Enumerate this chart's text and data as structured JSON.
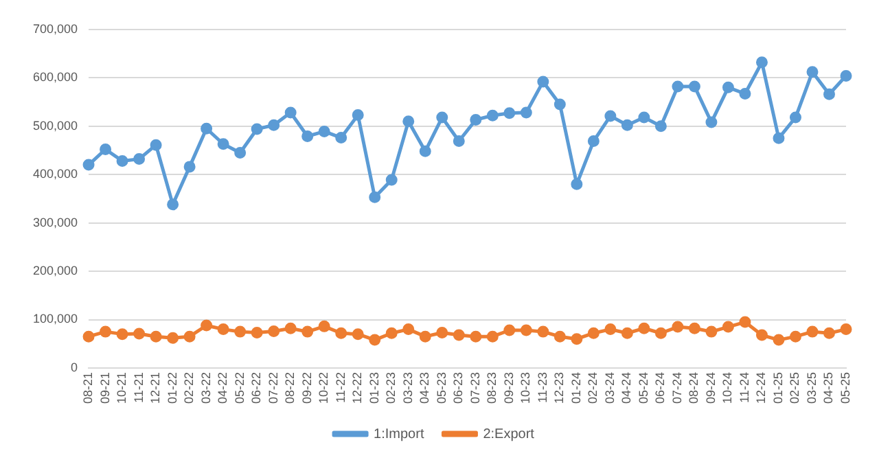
{
  "chart_data": {
    "type": "line",
    "categories": [
      "08-21",
      "09-21",
      "10-21",
      "11-21",
      "12-21",
      "01-22",
      "02-22",
      "03-22",
      "04-22",
      "05-22",
      "06-22",
      "07-22",
      "08-22",
      "09-22",
      "10-22",
      "11-22",
      "12-22",
      "01-23",
      "02-23",
      "03-23",
      "04-23",
      "05-23",
      "06-23",
      "07-23",
      "08-23",
      "09-23",
      "10-23",
      "11-23",
      "12-23",
      "01-24",
      "02-24",
      "03-24",
      "04-24",
      "05-24",
      "06-24",
      "07-24",
      "08-24",
      "09-24",
      "10-24",
      "11-24",
      "12-24",
      "01-25",
      "02-25",
      "03-25",
      "04-25",
      "05-25"
    ],
    "series": [
      {
        "name": "1:Import",
        "color": "#5b9bd5",
        "values": [
          420000,
          452000,
          428000,
          432000,
          461000,
          338000,
          416000,
          495000,
          463000,
          445000,
          494000,
          502000,
          528000,
          479000,
          489000,
          476000,
          523000,
          353000,
          389000,
          510000,
          448000,
          518000,
          469000,
          513000,
          522000,
          527000,
          528000,
          592000,
          545000,
          380000,
          469000,
          521000,
          502000,
          518000,
          500000,
          582000,
          582000,
          508000,
          580000,
          567000,
          632000,
          475000,
          518000,
          612000,
          566000,
          604000
        ]
      },
      {
        "name": "2:Export",
        "color": "#ed7d31",
        "values": [
          65000,
          75000,
          70000,
          71000,
          65000,
          62000,
          65000,
          88000,
          80000,
          75000,
          73000,
          76000,
          82000,
          75000,
          86000,
          72000,
          70000,
          58000,
          72000,
          80000,
          65000,
          73000,
          68000,
          65000,
          65000,
          78000,
          78000,
          75000,
          65000,
          60000,
          72000,
          80000,
          72000,
          82000,
          72000,
          85000,
          82000,
          75000,
          85000,
          95000,
          68000,
          58000,
          65000,
          75000,
          72000,
          80000
        ]
      }
    ],
    "ylim": [
      0,
      700000
    ],
    "yticks": [
      {
        "value": 0,
        "label": "0"
      },
      {
        "value": 100000,
        "label": "100,000"
      },
      {
        "value": 200000,
        "label": "200,000"
      },
      {
        "value": 300000,
        "label": "300,000"
      },
      {
        "value": 400000,
        "label": "400,000"
      },
      {
        "value": 500000,
        "label": "500,000"
      },
      {
        "value": 600000,
        "label": "600,000"
      },
      {
        "value": 700000,
        "label": "700,000"
      }
    ],
    "grid": "y",
    "legend": "bottom",
    "marker": "circle",
    "line_style": "solid"
  }
}
